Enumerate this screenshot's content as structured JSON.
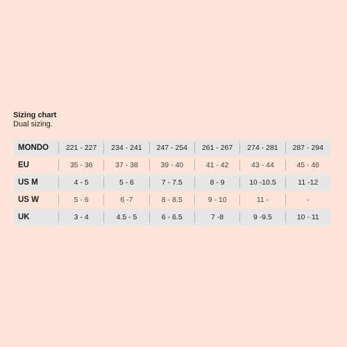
{
  "header": {
    "title": "Sizing chart",
    "subtitle": "Dual sizing."
  },
  "table": {
    "rows": [
      {
        "label": "MONDO",
        "values": [
          "221 - 227",
          "234 - 241",
          "247 - 254",
          "261 - 267",
          "274 - 281",
          "287 - 294"
        ]
      },
      {
        "label": "EU",
        "values": [
          "35 - 36",
          "37 - 38",
          "39 - 40",
          "41 - 42",
          "43 - 44",
          "45 - 46"
        ]
      },
      {
        "label": "US M",
        "values": [
          "4 - 5",
          "5 - 6",
          "7 - 7.5",
          "8 - 9",
          "10 -10.5",
          "11 -12"
        ]
      },
      {
        "label": "US W",
        "values": [
          "5 - 6",
          "6 -7",
          "8 - 8.5",
          "9 - 10",
          "11 -",
          "-"
        ]
      },
      {
        "label": "UK",
        "values": [
          "3 - 4",
          "4.5 - 5",
          "6 - 6.5",
          "7 -8",
          "9 -9.5",
          "10 - 11"
        ]
      }
    ]
  },
  "colors": {
    "background": "#fde6d9",
    "row_shade": "#e6e6e6",
    "divider": "#b5b5b5"
  }
}
